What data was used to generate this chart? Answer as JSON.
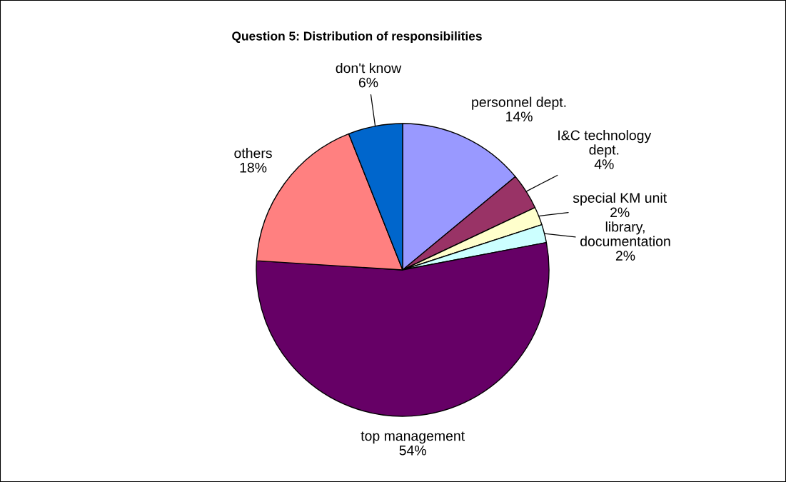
{
  "chart_data": {
    "type": "pie",
    "title": "Question 5: Distribution of responsibilities",
    "categories": [
      "personnel dept.",
      "I&C technology\ndept.",
      "special KM unit",
      "library,\ndocumentation",
      "top management",
      "others",
      "don't know"
    ],
    "values": [
      14,
      4,
      2,
      2,
      54,
      18,
      6
    ],
    "colors": [
      "#9999ff",
      "#993366",
      "#ffffcc",
      "#ccffff",
      "#660066",
      "#ff8080",
      "#0066cc"
    ],
    "value_labels": [
      "14%",
      "4%",
      "2%",
      "2%",
      "54%",
      "18%",
      "6%"
    ]
  }
}
